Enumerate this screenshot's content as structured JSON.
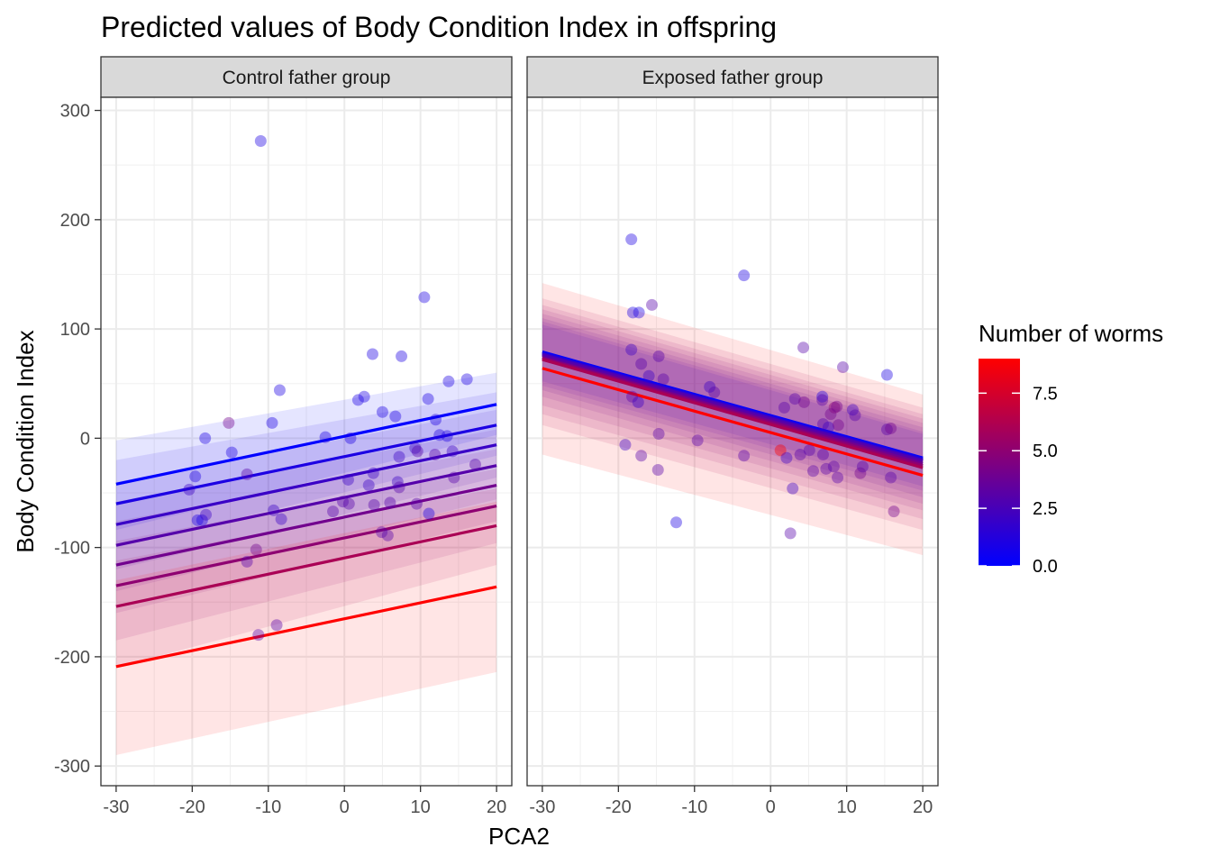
{
  "chart_data": {
    "type": "scatter",
    "title": "Predicted values of Body Condition Index in offspring",
    "xlabel": "PCA2",
    "ylabel": "Body Condition Index",
    "xlim": [
      -32,
      22
    ],
    "ylim": [
      -318,
      312
    ],
    "xticks": [
      -30,
      -20,
      -10,
      0,
      10,
      20
    ],
    "yticks": [
      -300,
      -200,
      -100,
      0,
      100,
      200,
      300
    ],
    "xtick_labels": [
      "-30",
      "-20",
      "-10",
      "0",
      "10",
      "20"
    ],
    "ytick_labels": [
      "-300",
      "-200",
      "-100",
      "0",
      "100",
      "200",
      "300"
    ],
    "grid": true,
    "legend": {
      "title": "Number of worms",
      "placement": "right",
      "range": [
        0,
        9
      ],
      "ticks": [
        0.0,
        2.5,
        5.0,
        7.5
      ],
      "tick_labels": [
        "0.0",
        "2.5",
        "5.0",
        "7.5"
      ],
      "low_color": "#0000FF",
      "high_color": "#FF0000"
    },
    "panels": [
      {
        "label": "Control father group",
        "lines": [
          {
            "worms": 0,
            "x": [
              -30,
              20
            ],
            "y": [
              -42,
              31
            ],
            "ci": [
              [
                -2,
                60
              ],
              [
                -84,
                3
              ]
            ]
          },
          {
            "worms": 1,
            "x": [
              -30,
              20
            ],
            "y": [
              -60,
              12
            ],
            "ci": [
              [
                -20,
                42
              ],
              [
                -100,
                -16
              ]
            ]
          },
          {
            "worms": 2,
            "x": [
              -30,
              20
            ],
            "y": [
              -79,
              -6
            ],
            "ci": [
              [
                -40,
                26
              ],
              [
                -120,
                -36
              ]
            ]
          },
          {
            "worms": 3,
            "x": [
              -30,
              20
            ],
            "y": [
              -98,
              -25
            ],
            "ci": [
              [
                -58,
                8
              ],
              [
                -140,
                -56
              ]
            ]
          },
          {
            "worms": 4,
            "x": [
              -30,
              20
            ],
            "y": [
              -116,
              -43
            ],
            "ci": [
              [
                -76,
                -10
              ],
              [
                -160,
                -76
              ]
            ]
          },
          {
            "worms": 5,
            "x": [
              -30,
              20
            ],
            "y": [
              -135,
              -62
            ],
            "ci": [
              [
                -94,
                -28
              ],
              [
                -185,
                -96
              ]
            ]
          },
          {
            "worms": 6,
            "x": [
              -30,
              20
            ],
            "y": [
              -154,
              -80
            ],
            "ci": [
              [
                -112,
                -46
              ],
              [
                -210,
                -116
              ]
            ]
          },
          {
            "worms": 9,
            "x": [
              -30,
              20
            ],
            "y": [
              -209,
              -136
            ],
            "ci": [
              [
                -130,
                -58
              ],
              [
                -290,
                -214
              ]
            ]
          }
        ],
        "points": [
          {
            "x": -11,
            "y": 272,
            "worms": 1
          },
          {
            "x": 10.5,
            "y": 129,
            "worms": 1
          },
          {
            "x": -8.5,
            "y": 44,
            "worms": 1
          },
          {
            "x": 3.7,
            "y": 77,
            "worms": 1
          },
          {
            "x": 7.5,
            "y": 75,
            "worms": 1
          },
          {
            "x": 13.7,
            "y": 52,
            "worms": 1
          },
          {
            "x": 16.1,
            "y": 54,
            "worms": 1
          },
          {
            "x": 11,
            "y": 36,
            "worms": 1
          },
          {
            "x": 2.6,
            "y": 38,
            "worms": 1
          },
          {
            "x": 1.8,
            "y": 35,
            "worms": 1
          },
          {
            "x": 5,
            "y": 24,
            "worms": 1
          },
          {
            "x": 6.7,
            "y": 20,
            "worms": 1
          },
          {
            "x": -9.5,
            "y": 14,
            "worms": 1
          },
          {
            "x": -15.2,
            "y": 14,
            "worms": 4
          },
          {
            "x": -18.3,
            "y": 0,
            "worms": 1
          },
          {
            "x": -2.5,
            "y": 1,
            "worms": 1
          },
          {
            "x": 0.8,
            "y": 0,
            "worms": 1
          },
          {
            "x": 12,
            "y": 17,
            "worms": 1
          },
          {
            "x": 12.5,
            "y": 3,
            "worms": 1
          },
          {
            "x": 13.5,
            "y": 2,
            "worms": 1
          },
          {
            "x": -14.8,
            "y": -13,
            "worms": 1
          },
          {
            "x": -19.6,
            "y": -35,
            "worms": 1
          },
          {
            "x": -20.4,
            "y": -47,
            "worms": 2
          },
          {
            "x": -19.3,
            "y": -75,
            "worms": 1
          },
          {
            "x": -18.7,
            "y": -75,
            "worms": 1
          },
          {
            "x": -18.2,
            "y": -70,
            "worms": 2
          },
          {
            "x": -12.8,
            "y": -33,
            "worms": 3
          },
          {
            "x": -9.3,
            "y": -66,
            "worms": 2
          },
          {
            "x": -8.3,
            "y": -74,
            "worms": 2
          },
          {
            "x": -11.6,
            "y": -102,
            "worms": 4
          },
          {
            "x": -12.8,
            "y": -113,
            "worms": 3
          },
          {
            "x": -11.3,
            "y": -180,
            "worms": 3
          },
          {
            "x": -8.9,
            "y": -171,
            "worms": 3
          },
          {
            "x": -1.5,
            "y": -67,
            "worms": 3
          },
          {
            "x": -0.2,
            "y": -58,
            "worms": 3
          },
          {
            "x": 0.6,
            "y": -60,
            "worms": 3
          },
          {
            "x": 0.5,
            "y": -38,
            "worms": 2
          },
          {
            "x": 3.2,
            "y": -43,
            "worms": 2
          },
          {
            "x": 3.8,
            "y": -32,
            "worms": 2
          },
          {
            "x": 3.9,
            "y": -61,
            "worms": 3
          },
          {
            "x": 4.9,
            "y": -86,
            "worms": 3
          },
          {
            "x": 5.7,
            "y": -89,
            "worms": 3
          },
          {
            "x": 6,
            "y": -59,
            "worms": 3
          },
          {
            "x": 7,
            "y": -40,
            "worms": 2
          },
          {
            "x": 7.2,
            "y": -45,
            "worms": 3
          },
          {
            "x": 7.2,
            "y": -17,
            "worms": 2
          },
          {
            "x": 9.3,
            "y": -9,
            "worms": 2
          },
          {
            "x": 9.6,
            "y": -12,
            "worms": 3
          },
          {
            "x": 9.5,
            "y": -60,
            "worms": 3
          },
          {
            "x": 11.1,
            "y": -69,
            "worms": 1
          },
          {
            "x": 11.9,
            "y": -15,
            "worms": 3
          },
          {
            "x": 14.2,
            "y": -12,
            "worms": 2
          },
          {
            "x": 14.4,
            "y": -36,
            "worms": 3
          },
          {
            "x": 17.2,
            "y": -24,
            "worms": 3
          }
        ]
      },
      {
        "label": "Exposed father group",
        "lines": [
          {
            "worms": 0,
            "x": [
              -30,
              20
            ],
            "y": [
              79,
              -18
            ],
            "ci": [
              [
                104,
                4
              ],
              [
                52,
                -44
              ]
            ]
          },
          {
            "worms": 1,
            "x": [
              -30,
              20
            ],
            "y": [
              78,
              -19
            ],
            "ci": [
              [
                107,
                6
              ],
              [
                48,
                -48
              ]
            ]
          },
          {
            "worms": 2,
            "x": [
              -30,
              20
            ],
            "y": [
              77,
              -20
            ],
            "ci": [
              [
                110,
                10
              ],
              [
                44,
                -54
              ]
            ]
          },
          {
            "worms": 3,
            "x": [
              -30,
              20
            ],
            "y": [
              76,
              -21
            ],
            "ci": [
              [
                114,
                14
              ],
              [
                38,
                -60
              ]
            ]
          },
          {
            "worms": 4,
            "x": [
              -30,
              20
            ],
            "y": [
              74,
              -23
            ],
            "ci": [
              [
                118,
                18
              ],
              [
                30,
                -66
              ]
            ]
          },
          {
            "worms": 5,
            "x": [
              -30,
              20
            ],
            "y": [
              73,
              -25
            ],
            "ci": [
              [
                122,
                22
              ],
              [
                22,
                -74
              ]
            ]
          },
          {
            "worms": 6,
            "x": [
              -30,
              20
            ],
            "y": [
              72,
              -27
            ],
            "ci": [
              [
                128,
                28
              ],
              [
                12,
                -84
              ]
            ]
          },
          {
            "worms": 9,
            "x": [
              -30,
              20
            ],
            "y": [
              64,
              -34
            ],
            "ci": [
              [
                142,
                40
              ],
              [
                -15,
                -107
              ]
            ]
          }
        ],
        "points": [
          {
            "x": -18.3,
            "y": 182,
            "worms": 1
          },
          {
            "x": -3.5,
            "y": 149,
            "worms": 1
          },
          {
            "x": -15.6,
            "y": 122,
            "worms": 3
          },
          {
            "x": -18.1,
            "y": 115,
            "worms": 1
          },
          {
            "x": -17.3,
            "y": 115,
            "worms": 1
          },
          {
            "x": -18.3,
            "y": 81,
            "worms": 2
          },
          {
            "x": -14.7,
            "y": 75,
            "worms": 3
          },
          {
            "x": -17,
            "y": 68,
            "worms": 3
          },
          {
            "x": -16,
            "y": 57,
            "worms": 2
          },
          {
            "x": -14.1,
            "y": 54,
            "worms": 3
          },
          {
            "x": 4.3,
            "y": 83,
            "worms": 3
          },
          {
            "x": 9.5,
            "y": 65,
            "worms": 3
          },
          {
            "x": 15.3,
            "y": 58,
            "worms": 1
          },
          {
            "x": -8,
            "y": 47,
            "worms": 2
          },
          {
            "x": -7.4,
            "y": 42,
            "worms": 3
          },
          {
            "x": -18.2,
            "y": 38,
            "worms": 3
          },
          {
            "x": -17.4,
            "y": 33,
            "worms": 2
          },
          {
            "x": 3.2,
            "y": 36,
            "worms": 3
          },
          {
            "x": 4.4,
            "y": 33,
            "worms": 4
          },
          {
            "x": 6.8,
            "y": 38,
            "worms": 1
          },
          {
            "x": 6.8,
            "y": 35,
            "worms": 3
          },
          {
            "x": 8.4,
            "y": 28,
            "worms": 5
          },
          {
            "x": 8.7,
            "y": 29,
            "worms": 4
          },
          {
            "x": 7.9,
            "y": 22,
            "worms": 4
          },
          {
            "x": 10.8,
            "y": 26,
            "worms": 2
          },
          {
            "x": 11.1,
            "y": 21,
            "worms": 3
          },
          {
            "x": 1.8,
            "y": 28,
            "worms": 3
          },
          {
            "x": 6.9,
            "y": 13,
            "worms": 3
          },
          {
            "x": 7.6,
            "y": 10,
            "worms": 2
          },
          {
            "x": 8.9,
            "y": 12,
            "worms": 4
          },
          {
            "x": 15.3,
            "y": 8,
            "worms": 3
          },
          {
            "x": 15.8,
            "y": 9,
            "worms": 4
          },
          {
            "x": -14.7,
            "y": 4,
            "worms": 3
          },
          {
            "x": -9.6,
            "y": -2,
            "worms": 3
          },
          {
            "x": -19.1,
            "y": -6,
            "worms": 2
          },
          {
            "x": -17,
            "y": -16,
            "worms": 3
          },
          {
            "x": -3.5,
            "y": -16,
            "worms": 3
          },
          {
            "x": 1.3,
            "y": -11,
            "worms": 9
          },
          {
            "x": 2.1,
            "y": -18,
            "worms": 2
          },
          {
            "x": 3.9,
            "y": -15,
            "worms": 3
          },
          {
            "x": 5.1,
            "y": -11,
            "worms": 3
          },
          {
            "x": 6.9,
            "y": -15,
            "worms": 3
          },
          {
            "x": 8.3,
            "y": -26,
            "worms": 3
          },
          {
            "x": 11.8,
            "y": -32,
            "worms": 4
          },
          {
            "x": 12.1,
            "y": -26,
            "worms": 3
          },
          {
            "x": 15.8,
            "y": -36,
            "worms": 3
          },
          {
            "x": 5.6,
            "y": -30,
            "worms": 3
          },
          {
            "x": 7.3,
            "y": -28,
            "worms": 3
          },
          {
            "x": 8.8,
            "y": -36,
            "worms": 3
          },
          {
            "x": -14.8,
            "y": -29,
            "worms": 3
          },
          {
            "x": 2.9,
            "y": -46,
            "worms": 2
          },
          {
            "x": 16.2,
            "y": -67,
            "worms": 4
          },
          {
            "x": -12.4,
            "y": -77,
            "worms": 1
          },
          {
            "x": 2.6,
            "y": -87,
            "worms": 3
          }
        ]
      }
    ]
  }
}
